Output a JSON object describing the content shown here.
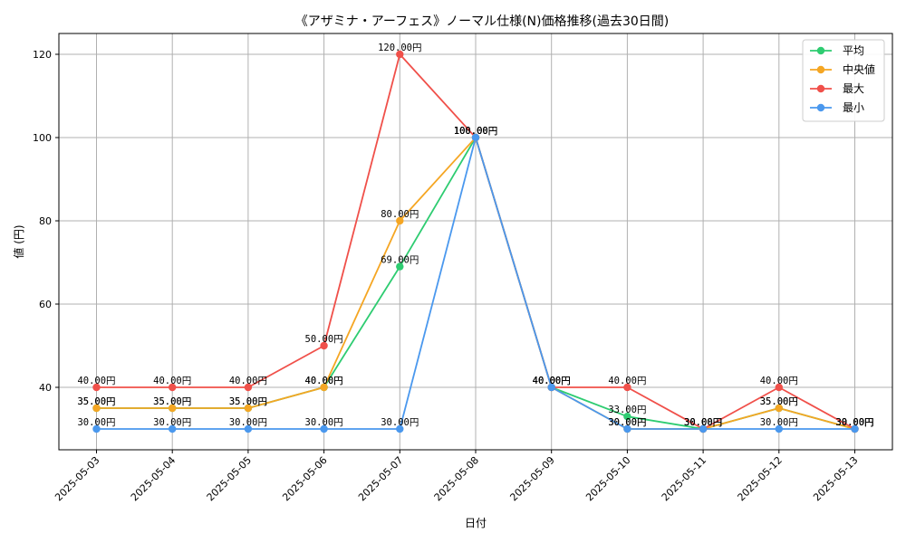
{
  "chart_data": {
    "type": "line",
    "title": "《アザミナ・アーフェス》ノーマル仕様(N)価格推移(過去30日間)",
    "xlabel": "日付",
    "ylabel": "値 (円)",
    "ylim": [
      25,
      125
    ],
    "yticks": [
      40,
      60,
      80,
      100,
      120
    ],
    "grid": true,
    "legend_position": "top-right",
    "value_suffix": "円",
    "categories": [
      "2025-05-03",
      "2025-05-04",
      "2025-05-05",
      "2025-05-06",
      "2025-05-07",
      "2025-05-08",
      "2025-05-09",
      "2025-05-10",
      "2025-05-11",
      "2025-05-12",
      "2025-05-13"
    ],
    "series": [
      {
        "key": "avg",
        "name": "平均",
        "color": "#2ecc71",
        "values": [
          35,
          35,
          35,
          40,
          69,
          100,
          40,
          33,
          30,
          35,
          30
        ]
      },
      {
        "key": "median",
        "name": "中央値",
        "color": "#f5a623",
        "values": [
          35,
          35,
          35,
          40,
          80,
          100,
          40,
          30,
          30,
          35,
          30
        ]
      },
      {
        "key": "max",
        "name": "最大",
        "color": "#f0504a",
        "values": [
          40,
          40,
          40,
          50,
          120,
          100,
          40,
          40,
          30,
          40,
          30
        ]
      },
      {
        "key": "min",
        "name": "最小",
        "color": "#4a98ee",
        "values": [
          30,
          30,
          30,
          30,
          30,
          100,
          40,
          30,
          30,
          30,
          30
        ]
      }
    ]
  }
}
